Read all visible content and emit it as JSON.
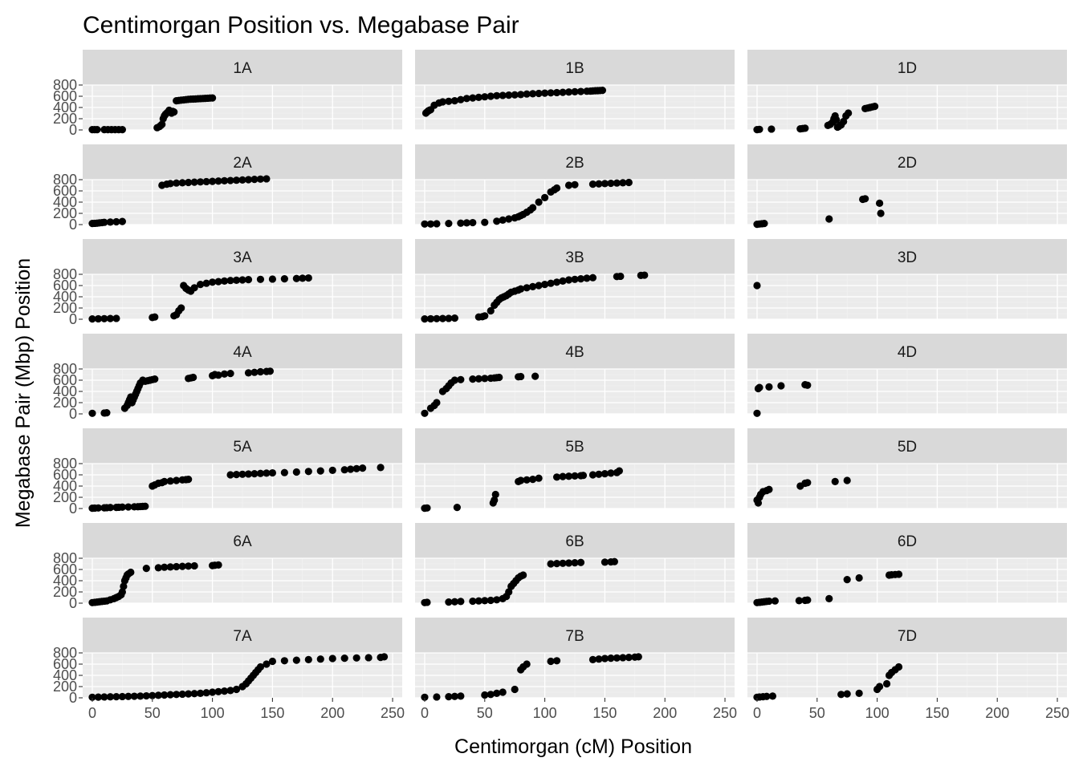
{
  "chart_data": {
    "type": "scatter",
    "title": "Centimorgan Position vs. Megabase Pair",
    "xlabel": "Centimorgan (cM) Position",
    "ylabel": "Megabase Pair (Mbp) Position",
    "xlim": [
      -8,
      258
    ],
    "ylim": [
      0,
      800
    ],
    "x_ticks": [
      0,
      50,
      100,
      150,
      200,
      250
    ],
    "y_ticks": [
      0,
      200,
      400,
      600,
      800
    ],
    "grid": true,
    "facet_layout": {
      "columns": 3,
      "rows": 7
    },
    "panels": [
      {
        "label": "1A",
        "x": [
          0,
          2,
          4,
          10,
          13,
          16,
          19,
          22,
          25,
          54,
          56,
          57,
          58,
          59,
          60,
          61,
          62,
          63,
          64,
          65,
          66,
          67,
          68,
          70,
          72,
          74,
          76,
          78,
          80,
          82,
          84,
          86,
          88,
          90,
          92,
          94,
          96,
          98,
          100
        ],
        "y": [
          5,
          5,
          5,
          5,
          5,
          5,
          5,
          5,
          5,
          40,
          60,
          80,
          100,
          200,
          250,
          280,
          300,
          320,
          350,
          320,
          300,
          330,
          320,
          520,
          525,
          530,
          535,
          540,
          545,
          548,
          550,
          552,
          555,
          558,
          560,
          562,
          565,
          568,
          570
        ]
      },
      {
        "label": "1B",
        "x": [
          1,
          2,
          3,
          4,
          5,
          8,
          12,
          15,
          20,
          25,
          30,
          35,
          40,
          45,
          50,
          55,
          60,
          65,
          70,
          75,
          80,
          85,
          90,
          95,
          100,
          105,
          110,
          115,
          120,
          125,
          130,
          135,
          138,
          140,
          142,
          144,
          146,
          148
        ],
        "y": [
          300,
          320,
          340,
          350,
          360,
          440,
          480,
          500,
          510,
          520,
          540,
          560,
          570,
          580,
          590,
          600,
          610,
          615,
          620,
          625,
          630,
          640,
          645,
          650,
          655,
          660,
          665,
          670,
          675,
          680,
          685,
          690,
          692,
          695,
          698,
          700,
          702,
          705
        ]
      },
      {
        "label": "1D",
        "x": [
          0,
          2,
          12,
          36,
          38,
          40,
          59,
          61,
          63,
          64,
          65,
          66,
          67,
          68,
          70,
          72,
          74,
          76,
          90,
          92,
          94,
          96,
          98
        ],
        "y": [
          5,
          10,
          15,
          20,
          25,
          30,
          80,
          100,
          140,
          200,
          250,
          180,
          50,
          60,
          90,
          150,
          250,
          300,
          380,
          390,
          400,
          410,
          420
        ]
      },
      {
        "label": "2A",
        "x": [
          0,
          2,
          4,
          6,
          8,
          10,
          15,
          20,
          25,
          58,
          62,
          65,
          70,
          75,
          80,
          85,
          90,
          95,
          100,
          105,
          110,
          115,
          120,
          125,
          130,
          135,
          140,
          145
        ],
        "y": [
          20,
          22,
          25,
          30,
          35,
          40,
          45,
          50,
          55,
          700,
          720,
          730,
          740,
          745,
          750,
          755,
          760,
          765,
          770,
          775,
          780,
          785,
          790,
          795,
          800,
          805,
          810,
          815
        ]
      },
      {
        "label": "2B",
        "x": [
          0,
          5,
          10,
          20,
          30,
          35,
          40,
          50,
          60,
          65,
          70,
          75,
          78,
          80,
          82,
          85,
          88,
          90,
          95,
          100,
          105,
          108,
          110,
          120,
          125,
          140,
          145,
          150,
          155,
          160,
          165,
          170
        ],
        "y": [
          10,
          10,
          15,
          20,
          25,
          30,
          35,
          40,
          60,
          80,
          100,
          120,
          140,
          160,
          180,
          220,
          260,
          300,
          400,
          480,
          580,
          620,
          650,
          700,
          710,
          720,
          725,
          730,
          735,
          740,
          745,
          750
        ]
      },
      {
        "label": "2D",
        "x": [
          0,
          2,
          4,
          6,
          60,
          88,
          90,
          102,
          103
        ],
        "y": [
          5,
          10,
          15,
          20,
          100,
          450,
          460,
          380,
          200
        ]
      },
      {
        "label": "3A",
        "x": [
          0,
          5,
          10,
          15,
          20,
          50,
          52,
          68,
          70,
          72,
          74,
          76,
          78,
          80,
          82,
          85,
          90,
          95,
          100,
          105,
          110,
          115,
          120,
          125,
          130,
          140,
          150,
          160,
          170,
          175,
          180
        ],
        "y": [
          5,
          8,
          10,
          12,
          15,
          30,
          40,
          60,
          80,
          150,
          200,
          600,
          550,
          520,
          500,
          560,
          620,
          640,
          660,
          670,
          680,
          690,
          695,
          700,
          705,
          710,
          715,
          720,
          725,
          730,
          735
        ]
      },
      {
        "label": "3B",
        "x": [
          0,
          5,
          10,
          15,
          20,
          25,
          45,
          48,
          50,
          55,
          58,
          60,
          62,
          64,
          66,
          68,
          70,
          72,
          75,
          78,
          80,
          85,
          90,
          95,
          100,
          105,
          110,
          115,
          120,
          125,
          130,
          135,
          140,
          160,
          163,
          180,
          183
        ],
        "y": [
          5,
          8,
          10,
          12,
          15,
          20,
          40,
          45,
          60,
          150,
          250,
          300,
          350,
          380,
          400,
          420,
          450,
          480,
          500,
          520,
          540,
          560,
          580,
          600,
          620,
          640,
          660,
          680,
          700,
          710,
          720,
          730,
          740,
          760,
          765,
          780,
          785
        ]
      },
      {
        "label": "3D",
        "x": [
          0
        ],
        "y": [
          600
        ]
      },
      {
        "label": "4A",
        "x": [
          0,
          10,
          12,
          27,
          29,
          30,
          31,
          32,
          33,
          34,
          35,
          36,
          37,
          38,
          39,
          40,
          42,
          44,
          46,
          48,
          50,
          52,
          80,
          82,
          84,
          100,
          102,
          105,
          110,
          115,
          130,
          135,
          140,
          145,
          148
        ],
        "y": [
          10,
          15,
          20,
          100,
          150,
          200,
          250,
          300,
          200,
          250,
          300,
          350,
          400,
          450,
          500,
          550,
          600,
          580,
          590,
          600,
          610,
          620,
          630,
          640,
          650,
          680,
          700,
          690,
          710,
          720,
          730,
          740,
          750,
          755,
          760
        ]
      },
      {
        "label": "4B",
        "x": [
          0,
          5,
          8,
          10,
          15,
          18,
          20,
          22,
          25,
          30,
          40,
          45,
          50,
          55,
          58,
          60,
          62,
          78,
          80,
          92
        ],
        "y": [
          10,
          100,
          150,
          200,
          400,
          450,
          500,
          550,
          600,
          610,
          620,
          625,
          630,
          635,
          640,
          645,
          650,
          660,
          665,
          670
        ]
      },
      {
        "label": "4D",
        "x": [
          0,
          1,
          2,
          10,
          20,
          40,
          42
        ],
        "y": [
          10,
          450,
          470,
          480,
          500,
          520,
          510
        ]
      },
      {
        "label": "5A",
        "x": [
          0,
          2,
          5,
          10,
          12,
          15,
          20,
          22,
          25,
          30,
          35,
          38,
          40,
          42,
          44,
          50,
          52,
          55,
          58,
          60,
          65,
          70,
          75,
          78,
          80,
          115,
          120,
          125,
          130,
          135,
          140,
          145,
          150,
          160,
          170,
          180,
          190,
          200,
          210,
          215,
          220,
          225,
          240
        ],
        "y": [
          5,
          8,
          10,
          12,
          15,
          18,
          20,
          22,
          25,
          28,
          30,
          32,
          35,
          38,
          40,
          400,
          420,
          450,
          460,
          480,
          490,
          500,
          510,
          515,
          520,
          600,
          605,
          610,
          615,
          620,
          625,
          630,
          635,
          640,
          650,
          660,
          670,
          680,
          690,
          700,
          710,
          720,
          730
        ]
      },
      {
        "label": "5B",
        "x": [
          0,
          2,
          27,
          57,
          58,
          59,
          78,
          80,
          85,
          90,
          95,
          110,
          115,
          120,
          125,
          130,
          132,
          140,
          145,
          150,
          155,
          160,
          162
        ],
        "y": [
          5,
          10,
          20,
          100,
          150,
          250,
          480,
          500,
          510,
          520,
          540,
          560,
          570,
          575,
          580,
          585,
          590,
          600,
          610,
          620,
          630,
          640,
          670
        ]
      },
      {
        "label": "5D",
        "x": [
          0,
          1,
          2,
          3,
          5,
          8,
          10,
          36,
          40,
          42,
          65,
          75
        ],
        "y": [
          150,
          100,
          200,
          250,
          300,
          320,
          340,
          400,
          450,
          460,
          480,
          500
        ]
      },
      {
        "label": "6A",
        "x": [
          0,
          2,
          4,
          6,
          8,
          10,
          12,
          15,
          18,
          20,
          22,
          24,
          25,
          26,
          27,
          28,
          29,
          30,
          32,
          45,
          55,
          60,
          65,
          70,
          75,
          80,
          85,
          100,
          102,
          105
        ],
        "y": [
          10,
          15,
          20,
          25,
          30,
          35,
          40,
          60,
          80,
          100,
          120,
          150,
          200,
          300,
          400,
          450,
          500,
          520,
          550,
          620,
          630,
          640,
          645,
          650,
          655,
          660,
          665,
          670,
          675,
          680
        ]
      },
      {
        "label": "6B",
        "x": [
          0,
          2,
          20,
          25,
          30,
          40,
          45,
          50,
          55,
          60,
          65,
          68,
          70,
          72,
          74,
          76,
          78,
          80,
          82,
          105,
          110,
          115,
          120,
          125,
          130,
          150,
          155,
          158
        ],
        "y": [
          10,
          15,
          20,
          25,
          30,
          35,
          40,
          45,
          50,
          60,
          80,
          120,
          200,
          300,
          350,
          400,
          450,
          480,
          500,
          700,
          705,
          710,
          715,
          720,
          725,
          730,
          735,
          740
        ]
      },
      {
        "label": "6D",
        "x": [
          0,
          2,
          4,
          6,
          8,
          10,
          15,
          35,
          40,
          42,
          60,
          75,
          85,
          110,
          112,
          115,
          118
        ],
        "y": [
          10,
          15,
          20,
          25,
          30,
          35,
          40,
          45,
          50,
          55,
          80,
          420,
          450,
          500,
          505,
          510,
          515
        ]
      },
      {
        "label": "7A",
        "x": [
          0,
          5,
          10,
          15,
          20,
          25,
          30,
          35,
          40,
          45,
          50,
          55,
          60,
          65,
          70,
          75,
          80,
          85,
          90,
          95,
          100,
          105,
          110,
          115,
          120,
          125,
          128,
          130,
          132,
          134,
          136,
          138,
          140,
          145,
          150,
          160,
          170,
          180,
          190,
          200,
          210,
          220,
          230,
          240,
          243
        ],
        "y": [
          10,
          12,
          15,
          18,
          20,
          22,
          25,
          28,
          30,
          35,
          40,
          45,
          50,
          55,
          60,
          65,
          70,
          75,
          80,
          90,
          100,
          110,
          120,
          130,
          150,
          200,
          250,
          300,
          350,
          400,
          450,
          500,
          550,
          600,
          650,
          660,
          670,
          680,
          690,
          700,
          705,
          710,
          715,
          720,
          730
        ]
      },
      {
        "label": "7B",
        "x": [
          0,
          10,
          20,
          25,
          30,
          50,
          55,
          60,
          65,
          75,
          80,
          82,
          85,
          105,
          110,
          140,
          145,
          150,
          155,
          160,
          165,
          170,
          175,
          178
        ],
        "y": [
          10,
          15,
          20,
          25,
          30,
          50,
          60,
          80,
          100,
          150,
          500,
          550,
          600,
          650,
          660,
          680,
          690,
          700,
          705,
          710,
          715,
          720,
          725,
          730
        ]
      },
      {
        "label": "7D",
        "x": [
          0,
          2,
          5,
          8,
          13,
          70,
          75,
          85,
          100,
          102,
          108,
          110,
          112,
          115,
          118
        ],
        "y": [
          10,
          15,
          20,
          25,
          30,
          60,
          70,
          80,
          150,
          200,
          250,
          400,
          450,
          500,
          550
        ]
      }
    ]
  }
}
